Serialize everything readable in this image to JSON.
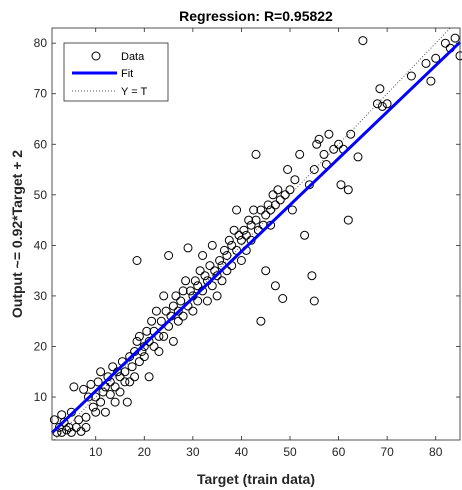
{
  "chart_data": {
    "type": "scatter",
    "title": "Regression: R=0.95822",
    "xlabel": "Target (train data)",
    "ylabel": "Output ~= 0.92*Target + 2",
    "xlim": [
      1,
      85
    ],
    "ylim": [
      1.5,
      83
    ],
    "xticks": [
      10,
      20,
      30,
      40,
      50,
      60,
      70,
      80
    ],
    "yticks": [
      10,
      20,
      30,
      40,
      50,
      60,
      70,
      80
    ],
    "grid": false,
    "legend_position": "top-left",
    "legend": [
      {
        "label": "Data",
        "marker": "open-circle",
        "color": "#000000"
      },
      {
        "label": "Fit",
        "marker": "line",
        "color": "#0000ff"
      },
      {
        "label": "Y = T",
        "marker": "dotted-line",
        "color": "#555555"
      }
    ],
    "fit": {
      "slope": 0.92,
      "intercept": 2,
      "color": "#0000ff"
    },
    "identity_line": {
      "color": "#555555"
    },
    "points": [
      [
        1.5,
        5.5
      ],
      [
        2,
        3
      ],
      [
        2.5,
        4
      ],
      [
        3,
        3
      ],
      [
        3,
        6.5
      ],
      [
        3.5,
        5
      ],
      [
        4,
        3.5
      ],
      [
        4.5,
        4
      ],
      [
        5,
        3
      ],
      [
        5,
        7
      ],
      [
        5.5,
        12
      ],
      [
        6,
        4
      ],
      [
        6.5,
        5.5
      ],
      [
        7,
        3.2
      ],
      [
        7.5,
        11.5
      ],
      [
        8,
        4
      ],
      [
        8,
        6
      ],
      [
        8.5,
        10
      ],
      [
        9,
        12.5
      ],
      [
        9.5,
        8
      ],
      [
        10,
        7
      ],
      [
        10,
        10
      ],
      [
        10.5,
        13
      ],
      [
        11,
        15
      ],
      [
        11,
        9
      ],
      [
        11.5,
        11
      ],
      [
        12,
        12
      ],
      [
        12,
        7
      ],
      [
        12.5,
        14
      ],
      [
        13,
        10.5
      ],
      [
        13,
        13
      ],
      [
        13.5,
        16
      ],
      [
        14,
        12
      ],
      [
        14,
        9
      ],
      [
        14.5,
        15
      ],
      [
        15,
        11
      ],
      [
        15,
        14
      ],
      [
        15.5,
        17
      ],
      [
        16,
        13
      ],
      [
        16,
        15
      ],
      [
        16.5,
        9
      ],
      [
        17,
        18
      ],
      [
        17,
        13
      ],
      [
        17.5,
        16
      ],
      [
        18,
        19
      ],
      [
        18,
        14
      ],
      [
        18.5,
        21
      ],
      [
        18.5,
        37
      ],
      [
        19,
        17
      ],
      [
        19,
        22
      ],
      [
        19.5,
        19
      ],
      [
        20,
        18
      ],
      [
        20,
        20
      ],
      [
        20.5,
        23
      ],
      [
        21,
        21
      ],
      [
        21,
        14
      ],
      [
        21.5,
        25
      ],
      [
        22,
        20
      ],
      [
        22,
        23
      ],
      [
        22.5,
        27
      ],
      [
        23,
        22
      ],
      [
        23,
        19
      ],
      [
        23.5,
        25
      ],
      [
        24,
        22
      ],
      [
        24,
        30
      ],
      [
        24.5,
        27
      ],
      [
        25,
        24
      ],
      [
        25,
        38
      ],
      [
        25.5,
        26
      ],
      [
        26,
        28
      ],
      [
        26,
        21
      ],
      [
        26.5,
        30
      ],
      [
        27,
        27
      ],
      [
        27,
        25
      ],
      [
        27.5,
        29
      ],
      [
        28,
        31
      ],
      [
        28,
        26
      ],
      [
        28.5,
        33
      ],
      [
        29,
        28
      ],
      [
        29,
        39.5
      ],
      [
        29.5,
        31
      ],
      [
        30,
        30
      ],
      [
        30,
        27
      ],
      [
        30.5,
        33
      ],
      [
        31,
        32
      ],
      [
        31,
        29
      ],
      [
        31.5,
        35
      ],
      [
        32,
        31
      ],
      [
        32,
        38
      ],
      [
        32.5,
        34
      ],
      [
        33,
        33
      ],
      [
        33,
        29
      ],
      [
        33.5,
        36
      ],
      [
        34,
        32
      ],
      [
        34,
        40
      ],
      [
        34.5,
        35
      ],
      [
        35,
        34
      ],
      [
        35,
        30
      ],
      [
        35.5,
        37
      ],
      [
        36,
        36
      ],
      [
        36,
        33
      ],
      [
        36.5,
        39
      ],
      [
        37,
        38
      ],
      [
        37,
        35
      ],
      [
        37.5,
        41
      ],
      [
        38,
        40
      ],
      [
        38,
        36
      ],
      [
        38.5,
        43
      ],
      [
        39,
        39
      ],
      [
        39,
        47
      ],
      [
        39.5,
        42
      ],
      [
        40,
        41
      ],
      [
        40,
        37
      ],
      [
        40.5,
        43
      ],
      [
        41,
        42
      ],
      [
        41,
        39
      ],
      [
        41.5,
        45
      ],
      [
        42,
        44
      ],
      [
        42,
        41
      ],
      [
        42.5,
        47
      ],
      [
        43,
        45
      ],
      [
        43,
        58
      ],
      [
        43.5,
        43
      ],
      [
        44,
        25
      ],
      [
        44,
        47
      ],
      [
        44.5,
        44
      ],
      [
        45,
        46
      ],
      [
        45,
        35
      ],
      [
        45.5,
        48
      ],
      [
        46,
        47
      ],
      [
        46,
        44
      ],
      [
        46.5,
        50
      ],
      [
        47,
        48
      ],
      [
        47,
        32
      ],
      [
        47.5,
        51
      ],
      [
        48,
        49
      ],
      [
        48.5,
        29.5
      ],
      [
        49,
        50
      ],
      [
        49.5,
        55
      ],
      [
        50,
        51
      ],
      [
        50.5,
        47
      ],
      [
        51,
        53
      ],
      [
        52,
        58
      ],
      [
        53,
        42
      ],
      [
        54,
        52
      ],
      [
        54.5,
        34
      ],
      [
        55,
        29
      ],
      [
        55,
        55
      ],
      [
        55.5,
        60
      ],
      [
        56,
        61
      ],
      [
        57,
        58
      ],
      [
        57.5,
        56
      ],
      [
        58,
        62
      ],
      [
        59,
        59
      ],
      [
        60,
        60
      ],
      [
        60.5,
        52
      ],
      [
        61,
        59
      ],
      [
        62,
        45
      ],
      [
        62,
        51
      ],
      [
        62.5,
        62
      ],
      [
        64,
        57.5
      ],
      [
        65,
        80.5
      ],
      [
        68,
        68
      ],
      [
        68.5,
        71
      ],
      [
        69,
        67.5
      ],
      [
        70,
        68
      ],
      [
        75,
        73.5
      ],
      [
        78,
        76
      ],
      [
        79,
        72.5
      ],
      [
        80,
        77
      ],
      [
        82,
        80
      ],
      [
        83,
        79
      ],
      [
        84,
        81
      ],
      [
        85,
        77.5
      ]
    ]
  }
}
